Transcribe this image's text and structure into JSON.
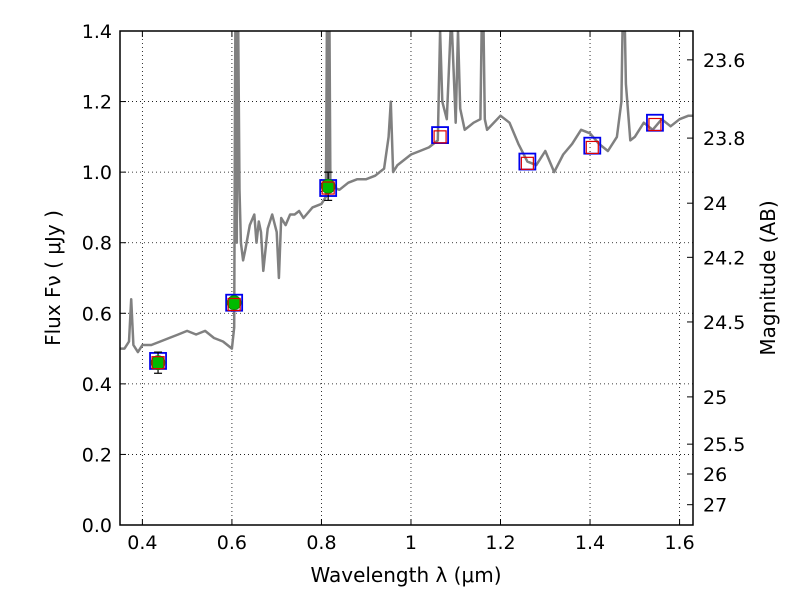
{
  "chart_data": {
    "type": "line",
    "xlabel": "Wavelength  λ (μm)",
    "ylabel": "Flux  Fν  ( μJy )",
    "y2label": "Magnitude (AB)",
    "xlim": [
      0.35,
      1.63
    ],
    "ylim": [
      0.0,
      1.4
    ],
    "grid": true,
    "x_ticks": [
      0.4,
      0.6,
      0.8,
      1.0,
      1.2,
      1.4,
      1.6
    ],
    "x_tick_labels": [
      "0.4",
      "0.6",
      "0.8",
      "1",
      "1.2",
      "1.4",
      "1.6"
    ],
    "y_ticks": [
      0.0,
      0.2,
      0.4,
      0.6,
      0.8,
      1.0,
      1.2,
      1.4
    ],
    "y_tick_labels": [
      "0.0",
      "0.2",
      "0.4",
      "0.6",
      "0.8",
      "1.0",
      "1.2",
      "1.4"
    ],
    "y2_ticks": [
      "23.6",
      "23.8",
      "24",
      "24.2",
      "24.5",
      "25",
      "25.5",
      "26",
      "27"
    ],
    "colors": {
      "spectrum": "#808080",
      "observed": "#00bb00",
      "model_box": "#0000ee",
      "model_small": "#dd0000"
    },
    "series": [
      {
        "kind": "spectrum",
        "x": [
          0.35,
          0.36,
          0.37,
          0.375,
          0.38,
          0.39,
          0.4,
          0.42,
          0.44,
          0.46,
          0.48,
          0.5,
          0.52,
          0.54,
          0.56,
          0.58,
          0.59,
          0.6,
          0.605,
          0.607,
          0.609,
          0.611,
          0.613,
          0.617,
          0.62,
          0.625,
          0.63,
          0.64,
          0.65,
          0.655,
          0.66,
          0.665,
          0.67,
          0.68,
          0.69,
          0.7,
          0.705,
          0.71,
          0.72,
          0.73,
          0.74,
          0.75,
          0.76,
          0.78,
          0.8,
          0.81,
          0.813,
          0.815,
          0.817,
          0.82,
          0.84,
          0.86,
          0.88,
          0.9,
          0.92,
          0.94,
          0.95,
          0.955,
          0.96,
          0.97,
          1.0,
          1.02,
          1.04,
          1.06,
          1.065,
          1.07,
          1.08,
          1.09,
          1.1,
          1.105,
          1.11,
          1.12,
          1.14,
          1.155,
          1.16,
          1.165,
          1.17,
          1.2,
          1.22,
          1.24,
          1.26,
          1.28,
          1.3,
          1.32,
          1.34,
          1.36,
          1.38,
          1.4,
          1.42,
          1.44,
          1.46,
          1.47,
          1.475,
          1.48,
          1.49,
          1.5,
          1.52,
          1.54,
          1.56,
          1.58,
          1.6,
          1.62,
          1.63
        ],
        "y": [
          0.5,
          0.5,
          0.52,
          0.64,
          0.51,
          0.49,
          0.51,
          0.51,
          0.52,
          0.53,
          0.54,
          0.55,
          0.54,
          0.55,
          0.53,
          0.52,
          0.51,
          0.5,
          0.56,
          1.2,
          1.7,
          0.8,
          1.6,
          0.95,
          0.8,
          0.75,
          0.78,
          0.85,
          0.88,
          0.8,
          0.86,
          0.83,
          0.72,
          0.84,
          0.88,
          0.83,
          0.7,
          0.87,
          0.85,
          0.88,
          0.88,
          0.89,
          0.87,
          0.9,
          0.91,
          0.93,
          1.6,
          0.98,
          1.6,
          0.96,
          0.95,
          0.97,
          0.98,
          0.98,
          0.99,
          1.01,
          1.1,
          1.2,
          1.0,
          1.02,
          1.05,
          1.06,
          1.07,
          1.09,
          1.4,
          1.2,
          1.15,
          1.45,
          1.14,
          1.4,
          1.18,
          1.12,
          1.14,
          1.15,
          1.6,
          1.15,
          1.12,
          1.16,
          1.14,
          1.08,
          1.03,
          1.02,
          1.06,
          1.0,
          1.05,
          1.08,
          1.12,
          1.11,
          1.08,
          1.06,
          1.1,
          1.2,
          1.6,
          1.25,
          1.09,
          1.1,
          1.14,
          1.12,
          1.15,
          1.13,
          1.15,
          1.16,
          1.16
        ]
      },
      {
        "kind": "observed",
        "x": [
          0.435,
          0.605,
          0.815
        ],
        "y": [
          0.46,
          0.63,
          0.96
        ],
        "err": [
          0.03,
          0.015,
          0.04
        ]
      },
      {
        "kind": "model_box",
        "x": [
          0.435,
          0.605,
          0.815,
          1.065,
          1.26,
          1.405,
          1.545
        ],
        "y": [
          0.465,
          0.63,
          0.955,
          1.105,
          1.03,
          1.075,
          1.14
        ]
      },
      {
        "kind": "model_small",
        "x": [
          0.435,
          0.605,
          0.815,
          1.065,
          1.26,
          1.405,
          1.545
        ],
        "y": [
          0.46,
          0.625,
          0.955,
          1.1,
          1.025,
          1.07,
          1.135
        ]
      }
    ]
  }
}
